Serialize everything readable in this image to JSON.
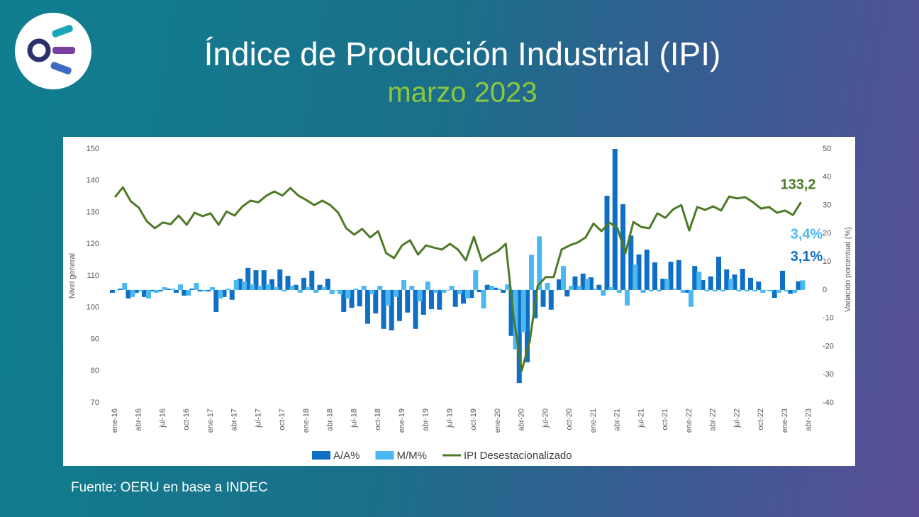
{
  "header": {
    "title": "Índice de Producción Industrial (IPI)",
    "subtitle": "marzo 2023"
  },
  "chart_data": {
    "type": "combo",
    "categories": [
      "ene-16",
      null,
      null,
      "abr-16",
      null,
      null,
      "jul-16",
      null,
      null,
      "oct-16",
      null,
      null,
      "ene-17",
      null,
      null,
      "abr-17",
      null,
      null,
      "jul-17",
      null,
      null,
      "oct-17",
      null,
      null,
      "ene-18",
      null,
      null,
      "abr-18",
      null,
      null,
      "jul-18",
      null,
      null,
      "oct-18",
      null,
      null,
      "ene-19",
      null,
      null,
      "abr-19",
      null,
      null,
      "jul-19",
      null,
      null,
      "oct-19",
      null,
      null,
      "ene-20",
      null,
      null,
      "abr-20",
      null,
      null,
      "jul-20",
      null,
      null,
      "oct-20",
      null,
      null,
      "ene-21",
      null,
      null,
      "abr-21",
      null,
      null,
      "jul-21",
      null,
      null,
      "oct-21",
      null,
      null,
      "ene-22",
      null,
      null,
      "abr-22",
      null,
      null,
      "jul-22",
      null,
      null,
      "oct-22",
      null,
      null,
      "ene-23",
      null,
      null,
      "abr-23"
    ],
    "series": [
      {
        "name": "A/A%",
        "type": "bar",
        "axis": "y2",
        "color": "#0e6fc4",
        "values": [
          -1,
          0.5,
          -3,
          -1,
          -2.5,
          -0.5,
          -0.5,
          0.5,
          -1,
          -2,
          0.5,
          -0.5,
          -0.5,
          -7.8,
          -2.5,
          -3.5,
          4,
          7.8,
          7,
          7,
          3.8,
          7.3,
          5,
          1.8,
          4.3,
          6.8,
          1.8,
          4,
          0,
          -7.8,
          -6.3,
          -5.8,
          -12,
          -8.3,
          -13.8,
          -14.3,
          -11,
          -8,
          -13.8,
          -8.8,
          -6.8,
          -7,
          0,
          -6,
          -4.8,
          -2.8,
          -0.8,
          1.8,
          0.8,
          -1,
          -16.3,
          -33,
          -25.6,
          -10,
          -6,
          -7,
          3.8,
          -2.3,
          4.8,
          5.8,
          4.5,
          1.8,
          33.4,
          50,
          30.4,
          19.3,
          12.6,
          14.3,
          9.8,
          4,
          10,
          10.6,
          -1,
          8.5,
          3.5,
          4.8,
          11.8,
          7.3,
          5.5,
          7.5,
          4.3,
          3,
          0,
          -2.8,
          6.8,
          -1.3,
          3.1,
          null
        ],
        "value_labels": [
          null,
          null,
          null,
          null,
          null,
          null,
          null,
          null,
          null,
          null,
          null,
          null,
          null,
          null,
          null,
          null,
          null,
          null,
          null,
          null,
          null,
          null,
          null,
          null,
          null,
          null,
          null,
          null,
          null,
          null,
          null,
          null,
          null,
          null,
          null,
          null,
          null,
          null,
          null,
          null,
          null,
          null,
          null,
          null,
          null,
          null,
          null,
          null,
          null,
          null,
          null,
          null,
          null,
          null,
          null,
          null,
          null,
          null,
          null,
          null,
          null,
          null,
          null,
          null,
          null,
          null,
          null,
          null,
          null,
          null,
          null,
          null,
          null,
          null,
          null,
          null,
          null,
          null,
          null,
          null,
          null,
          null,
          null,
          null,
          null,
          null,
          "3,1%",
          null
        ]
      },
      {
        "name": "M/M%",
        "type": "bar",
        "axis": "y2",
        "color": "#4cb8f2",
        "values": [
          0,
          2.5,
          -2.5,
          -0.5,
          -3,
          -1,
          1,
          0.5,
          2,
          -2,
          2.5,
          -0.5,
          1,
          -3,
          0.5,
          3.5,
          3,
          2,
          1.5,
          2,
          1,
          -0.5,
          1.5,
          -1,
          1,
          -1,
          1,
          -1.5,
          -1.5,
          -3,
          0.5,
          1.5,
          -1.5,
          1.5,
          -5.5,
          -2.5,
          3.5,
          1.5,
          -4,
          3,
          -1,
          -1,
          1.5,
          -1.5,
          -3,
          7,
          -6.5,
          1.5,
          0.5,
          2,
          -21,
          -15,
          12.5,
          19,
          2.5,
          0,
          8.5,
          1.5,
          1.5,
          4,
          0.5,
          -2,
          1,
          -1,
          -5.5,
          9,
          -1,
          -0.5,
          -0.5,
          4,
          0.5,
          -1,
          -6,
          6.5,
          -0.5,
          -0.5,
          -0.5,
          4,
          -0.5,
          -0.5,
          -0.5,
          -1,
          -0.5,
          -1,
          -0.5,
          -1,
          3.4,
          null
        ],
        "value_labels": [
          null,
          null,
          null,
          null,
          null,
          null,
          null,
          null,
          null,
          null,
          null,
          null,
          null,
          null,
          null,
          null,
          null,
          null,
          null,
          null,
          null,
          null,
          null,
          null,
          null,
          null,
          null,
          null,
          null,
          null,
          null,
          null,
          null,
          null,
          null,
          null,
          null,
          null,
          null,
          null,
          null,
          null,
          null,
          null,
          null,
          null,
          null,
          null,
          null,
          null,
          null,
          null,
          null,
          null,
          null,
          null,
          null,
          null,
          null,
          null,
          null,
          null,
          null,
          null,
          null,
          null,
          null,
          null,
          null,
          null,
          null,
          null,
          null,
          null,
          null,
          null,
          null,
          null,
          null,
          null,
          null,
          null,
          null,
          null,
          null,
          null,
          "3,4%",
          null
        ]
      },
      {
        "name": "IPI Desestacionalizado",
        "type": "line",
        "color": "#4e7a27",
        "values": [
          134.8,
          137.9,
          133.5,
          131.5,
          127.2,
          125.0,
          126.8,
          126.3,
          129.0,
          126.1,
          129.9,
          128.8,
          129.7,
          126.1,
          130.3,
          129.0,
          131.9,
          133.7,
          133.2,
          135.3,
          136.6,
          135.3,
          137.7,
          135.3,
          133.9,
          132.3,
          133.7,
          132.3,
          129.9,
          125.0,
          123.0,
          124.8,
          122.1,
          124.1,
          117.2,
          115.6,
          119.6,
          121.2,
          116.7,
          119.6,
          118.9,
          118.3,
          120.1,
          118.3,
          114.9,
          122.3,
          114.7,
          116.5,
          117.8,
          120.1,
          96.6,
          80.1,
          89.4,
          106.9,
          109.6,
          109.6,
          118.3,
          119.6,
          120.5,
          122.1,
          126.5,
          124.1,
          126.8,
          125.0,
          117.2,
          127.0,
          125.4,
          125.0,
          129.7,
          128.3,
          131.0,
          132.3,
          124.3,
          131.7,
          130.8,
          131.9,
          130.6,
          135.0,
          134.4,
          134.8,
          133.2,
          131.2,
          131.7,
          129.9,
          130.6,
          129.2,
          133.2,
          null
        ],
        "value_labels": [
          null,
          null,
          null,
          null,
          null,
          null,
          null,
          null,
          null,
          null,
          null,
          null,
          null,
          null,
          null,
          null,
          null,
          null,
          null,
          null,
          null,
          null,
          null,
          null,
          null,
          null,
          null,
          null,
          null,
          null,
          null,
          null,
          null,
          null,
          null,
          null,
          null,
          null,
          null,
          null,
          null,
          null,
          null,
          null,
          null,
          null,
          null,
          null,
          null,
          null,
          null,
          null,
          null,
          null,
          null,
          null,
          null,
          null,
          null,
          null,
          null,
          null,
          null,
          null,
          null,
          null,
          null,
          null,
          null,
          null,
          null,
          null,
          null,
          null,
          null,
          null,
          null,
          null,
          null,
          null,
          null,
          null,
          null,
          null,
          null,
          null,
          "133,2",
          null
        ]
      }
    ],
    "ylabel": "Nivel general",
    "y2label": "Variación porcentual (%)",
    "ylim": [
      70,
      150
    ],
    "yticks": [
      70,
      80,
      90,
      100,
      110,
      120,
      130,
      140,
      150
    ],
    "y2lim": [
      -40,
      50
    ],
    "y2ticks": [
      -40,
      -30,
      -20,
      -10,
      0,
      10,
      20,
      30,
      40,
      50
    ]
  },
  "footer": {
    "source": "Fuente: OERU en base a INDEC"
  }
}
